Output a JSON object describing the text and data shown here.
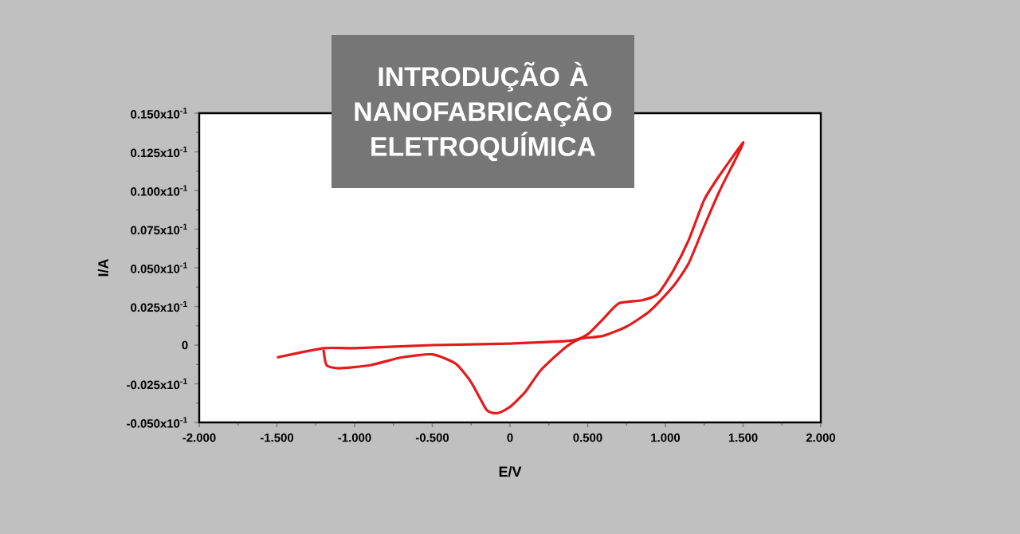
{
  "chart_data": {
    "type": "line",
    "title": "INTRODUÇÃO À NANOFABRICAÇÃO ELETROQUÍMICA",
    "xlabel": "E/V",
    "ylabel": "I/A",
    "color": "#e41a1c",
    "line_style": "solid",
    "x": [
      -1.5,
      -1.2,
      -1.0,
      -0.5,
      0.0,
      0.4,
      0.5,
      0.6,
      0.7,
      0.85,
      0.95,
      1.05,
      1.15,
      1.25,
      1.35,
      1.5,
      1.45,
      1.35,
      1.25,
      1.15,
      1.05,
      0.9,
      0.75,
      0.6,
      0.45,
      0.35,
      0.2,
      0.1,
      0.0,
      -0.08,
      -0.15,
      -0.25,
      -0.35,
      -0.5,
      -0.7,
      -0.9,
      -1.1,
      -1.18,
      -1.2
    ],
    "values": [
      -0.0008,
      -0.0002,
      -0.0002,
      0.0,
      0.0001,
      0.0003,
      0.0007,
      0.0017,
      0.0027,
      0.0029,
      0.0033,
      0.0048,
      0.0068,
      0.0094,
      0.011,
      0.0131,
      0.012,
      0.01,
      0.0077,
      0.0053,
      0.0038,
      0.0022,
      0.0012,
      0.0006,
      0.0004,
      -0.0002,
      -0.0016,
      -0.003,
      -0.004,
      -0.0044,
      -0.0042,
      -0.0024,
      -0.0012,
      -0.0006,
      -0.0008,
      -0.0013,
      -0.0015,
      -0.0013,
      -0.0003
    ],
    "xlim": [
      -2,
      2
    ],
    "ylim": [
      -0.005,
      0.015
    ],
    "xticks": [
      {
        "value": -2,
        "label": "-2.000"
      },
      {
        "value": -1.5,
        "label": "-1.500"
      },
      {
        "value": -1,
        "label": "-1.000"
      },
      {
        "value": -0.5,
        "label": "-0.500"
      },
      0,
      {
        "value": 0.5,
        "label": "0.500"
      },
      {
        "value": 1,
        "label": "1.000"
      },
      {
        "value": 1.5,
        "label": "1.500"
      },
      {
        "value": 2,
        "label": "2.000"
      }
    ],
    "yticks": [
      {
        "value": -0.005,
        "label": "-0.050x10$^{-1}$"
      },
      {
        "value": -0.0025,
        "label": "-0.025x10$^{-1}$"
      },
      0,
      {
        "value": 0.0025,
        "label": "0.025x10$^{-1}$"
      },
      {
        "value": 0.005,
        "label": "0.050x10$^{-1}$"
      },
      {
        "value": 0.0075,
        "label": "0.075x10$^{-1}$"
      },
      {
        "value": 0.01,
        "label": "0.100x10$^{-1}$"
      },
      {
        "value": 0.0125,
        "label": "0.125x10$^{-1}$"
      },
      {
        "value": 0.015,
        "label": "0.150x10$^{-1}$"
      }
    ]
  }
}
